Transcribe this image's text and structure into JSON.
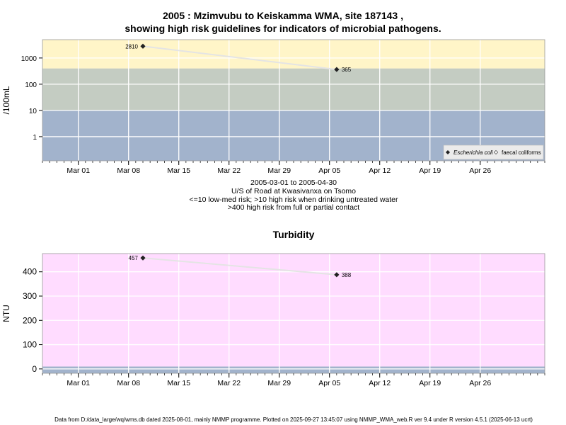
{
  "header": {
    "title_line1": "2005 : Mzimvubu to Keiskamma WMA, site 187143 ,",
    "title_line2": "showing high risk guidelines for indicators of microbial pathogens."
  },
  "site_info": {
    "date_range": "2005-03-01 to 2005-04-30",
    "location": "U/S of Road at Kwasivanxa on Tsomo",
    "guideline_1": "<=10 low-med risk; >10 high risk when drinking untreated water",
    "guideline_2": ">400 high risk from full or partial contact"
  },
  "footer": {
    "text": "Data from D:/data_large/wq/wms.db dated 2025-08-01, mainly NMMP programme. Plotted on 2025-09-27 13:45:07 using NMMP_WMA_web.R ver 9.4 under R version 4.5.1 (2025-06-13 ucrt)"
  },
  "colors": {
    "high_risk_band": "#fff5c8",
    "med_risk_band": "#c4ccc2",
    "low_risk_band": "#a2b3cc",
    "turbidity_band": "#ffdcff",
    "turbidity_low_band": "#a2b3cc",
    "grid": "#ffffff",
    "line": "#e4e4e4",
    "point": "#222222"
  },
  "chart_data": [
    {
      "type": "line",
      "title": "",
      "xlabel": "",
      "ylabel": "/100mL",
      "log_y": true,
      "ylim": [
        0.12,
        5000
      ],
      "xlim": [
        "2005-02-24",
        "2005-05-05"
      ],
      "x_ticks": [
        "Mar 01",
        "Mar 08",
        "Mar 15",
        "Mar 22",
        "Mar 29",
        "Apr 05",
        "Apr 12",
        "Apr 19",
        "Apr 26"
      ],
      "x_tick_dates": [
        "2005-03-01",
        "2005-03-08",
        "2005-03-15",
        "2005-03-22",
        "2005-03-29",
        "2005-04-05",
        "2005-04-12",
        "2005-04-19",
        "2005-04-26"
      ],
      "y_ticks": [
        1,
        10,
        100,
        1000
      ],
      "y_tick_labels": [
        "1",
        "10",
        "100",
        "1000"
      ],
      "bands": [
        {
          "from": 0.12,
          "to": 10,
          "color": "#a2b3cc"
        },
        {
          "from": 10,
          "to": 400,
          "color": "#c4ccc2"
        },
        {
          "from": 400,
          "to": 5000,
          "color": "#fff5c8"
        }
      ],
      "grid": true,
      "legend_position": "bottom-right",
      "legend": [
        {
          "label": "Escherichia coli",
          "marker": "filled-diamond",
          "italic": true
        },
        {
          "label": "faecal coliforms",
          "marker": "open-diamond",
          "italic": false
        }
      ],
      "series": [
        {
          "name": "Escherichia coli",
          "points": [
            {
              "x": "2005-03-10",
              "y": 2810,
              "label": "2810",
              "label_side": "left"
            },
            {
              "x": "2005-04-06",
              "y": 365,
              "label": "365",
              "label_side": "right"
            }
          ]
        }
      ]
    },
    {
      "type": "line",
      "title": "Turbidity",
      "xlabel": "",
      "ylabel": "NTU",
      "log_y": false,
      "ylim": [
        -18,
        475
      ],
      "xlim": [
        "2005-02-24",
        "2005-05-05"
      ],
      "x_ticks": [
        "Mar 01",
        "Mar 08",
        "Mar 15",
        "Mar 22",
        "Mar 29",
        "Apr 05",
        "Apr 12",
        "Apr 19",
        "Apr 26"
      ],
      "x_tick_dates": [
        "2005-03-01",
        "2005-03-08",
        "2005-03-15",
        "2005-03-22",
        "2005-03-29",
        "2005-04-05",
        "2005-04-12",
        "2005-04-19",
        "2005-04-26"
      ],
      "y_ticks": [
        0,
        100,
        200,
        300,
        400
      ],
      "y_tick_labels": [
        "0",
        "100",
        "200",
        "300",
        "400"
      ],
      "bands": [
        {
          "from": -18,
          "to": 10,
          "color": "#a2b3cc"
        },
        {
          "from": 10,
          "to": 475,
          "color": "#ffdcff"
        }
      ],
      "grid": true,
      "series": [
        {
          "name": "Turbidity",
          "points": [
            {
              "x": "2005-03-10",
              "y": 457,
              "label": "457",
              "label_side": "left"
            },
            {
              "x": "2005-04-06",
              "y": 388,
              "label": "388",
              "label_side": "right"
            }
          ]
        }
      ]
    }
  ]
}
